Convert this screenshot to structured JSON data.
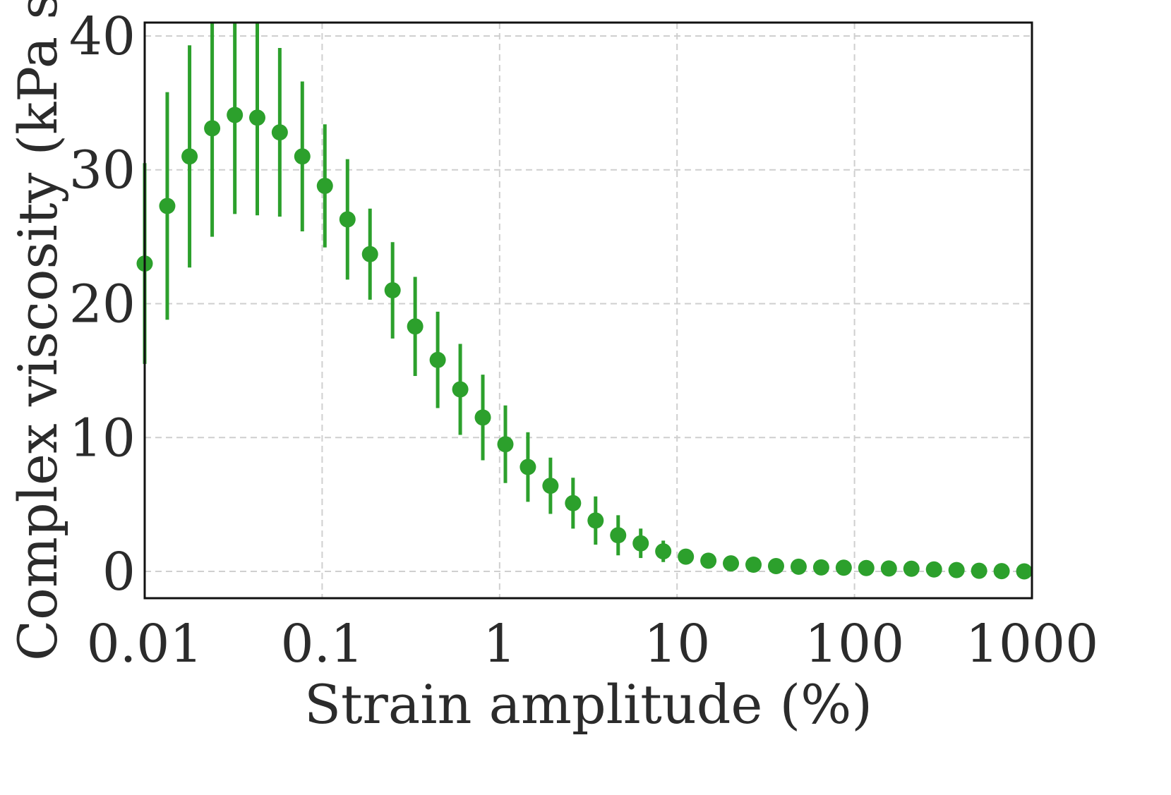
{
  "chart_data": {
    "type": "scatter",
    "title": "",
    "xlabel": "Strain amplitude (%)",
    "ylabel": "Complex viscosity (kPa s)",
    "xscale": "log",
    "xlim": [
      0.01,
      1000
    ],
    "ylim": [
      -2,
      41
    ],
    "xticks": [
      0.01,
      0.1,
      1,
      10,
      100,
      1000
    ],
    "xtick_labels": [
      "0.01",
      "0.1",
      "1",
      "10",
      "100",
      "1000"
    ],
    "yticks": [
      0,
      10,
      20,
      30,
      40
    ],
    "ytick_labels": [
      "0",
      "10",
      "20",
      "30",
      "40"
    ],
    "grid": true,
    "color": "#2ca02c",
    "series": [
      {
        "name": "Complex viscosity",
        "x": [
          0.01,
          0.0134,
          0.0179,
          0.024,
          0.0322,
          0.0431,
          0.0577,
          0.0773,
          0.1036,
          0.1389,
          0.1861,
          0.2494,
          0.3342,
          0.4479,
          0.6002,
          0.8043,
          1.078,
          1.444,
          1.935,
          2.593,
          3.475,
          4.657,
          6.241,
          8.363,
          11.21,
          15.02,
          20.12,
          26.97,
          36.14,
          48.43,
          64.9,
          86.97,
          116.5,
          156.2,
          209.3,
          280.5,
          375.8,
          503.7,
          674.9,
          904.5
        ],
        "y": [
          23.0,
          27.3,
          31.0,
          33.1,
          34.1,
          33.9,
          32.8,
          31.0,
          28.8,
          26.3,
          23.7,
          21.0,
          18.3,
          15.8,
          13.6,
          11.5,
          9.5,
          7.8,
          6.4,
          5.1,
          3.8,
          2.7,
          2.1,
          1.5,
          1.1,
          0.8,
          0.6,
          0.5,
          0.4,
          0.35,
          0.3,
          0.28,
          0.25,
          0.22,
          0.2,
          0.15,
          0.1,
          0.05,
          0.02,
          0.0
        ],
        "err": [
          7.5,
          8.5,
          8.3,
          8.1,
          7.4,
          7.3,
          6.3,
          5.6,
          4.6,
          4.5,
          3.4,
          3.6,
          3.7,
          3.6,
          3.4,
          3.2,
          2.9,
          2.6,
          2.1,
          1.9,
          1.8,
          1.5,
          1.1,
          0.8,
          0.3,
          0.2,
          0.15,
          0.1,
          0.1,
          0.1,
          0.05,
          0.05,
          0.05,
          0.05,
          0.05,
          0.05,
          0.05,
          0.05,
          0.05,
          0.05
        ]
      }
    ]
  }
}
